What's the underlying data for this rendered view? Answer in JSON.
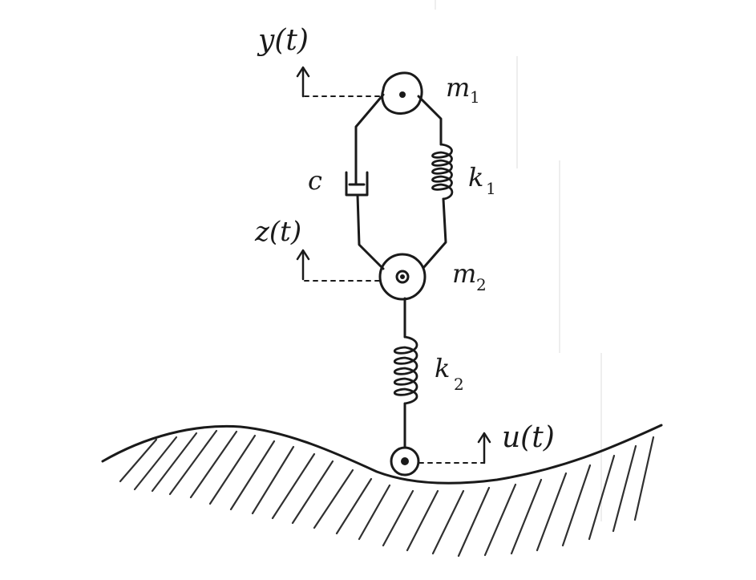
{
  "labels": {
    "m1": "m",
    "m1_sub": "1",
    "m2": "m",
    "m2_sub": "2",
    "k1": "k",
    "k1_sub": "1",
    "k2": "k",
    "k2_sub": "2",
    "c": "c",
    "y": "y(t)",
    "z": "z(t)",
    "u": "u(t)"
  },
  "colors": {
    "ink": "#1a1a1a",
    "paper": "#ffffff"
  }
}
